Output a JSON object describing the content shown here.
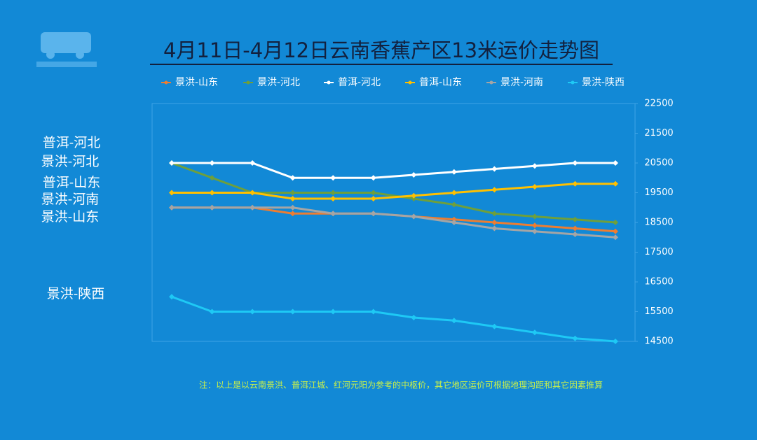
{
  "chart_data": {
    "type": "line",
    "title": "4月11日-4月12日云南香蕉产区13米运价走势图",
    "categories": [
      null,
      null,
      null,
      null,
      null,
      null,
      null,
      null,
      null,
      null,
      null,
      null
    ],
    "series": [
      {
        "name": "景洪-山东",
        "color": "#ed7d31",
        "values": [
          19000,
          19000,
          19000,
          18800,
          18800,
          18800,
          18700,
          18600,
          18500,
          18400,
          18300,
          18200
        ]
      },
      {
        "name": "景洪-河北",
        "color": "#6e9f3c",
        "values": [
          20500,
          20000,
          19500,
          19500,
          19500,
          19500,
          19300,
          19100,
          18800,
          18700,
          18600,
          18500
        ]
      },
      {
        "name": "普洱-河北",
        "color": "#ffffff",
        "values": [
          20500,
          20500,
          20500,
          20000,
          20000,
          20000,
          20100,
          20200,
          20300,
          20400,
          20500,
          20500
        ]
      },
      {
        "name": "普洱-山东",
        "color": "#ffc000",
        "values": [
          19500,
          19500,
          19500,
          19300,
          19300,
          19300,
          19400,
          19500,
          19600,
          19700,
          19800,
          19800
        ]
      },
      {
        "name": "景洪-河南",
        "color": "#a5a5a5",
        "values": [
          19000,
          19000,
          19000,
          19000,
          18800,
          18800,
          18700,
          18500,
          18300,
          18200,
          18100,
          18000
        ]
      },
      {
        "name": "景洪-陕西",
        "color": "#1ec9f5",
        "values": [
          16000,
          15500,
          15500,
          15500,
          15500,
          15500,
          15300,
          15200,
          15000,
          14800,
          14600,
          14500
        ]
      }
    ],
    "ylim": [
      14500,
      22500
    ],
    "yticks": [
      14500,
      15500,
      16500,
      17500,
      18500,
      19500,
      20500,
      21500,
      22500
    ],
    "legend": "top",
    "note": "注：以上是以云南景洪、普洱江城、红河元阳为参考的中枢价，其它地区运价可根据地理沟距和其它因素推算"
  }
}
